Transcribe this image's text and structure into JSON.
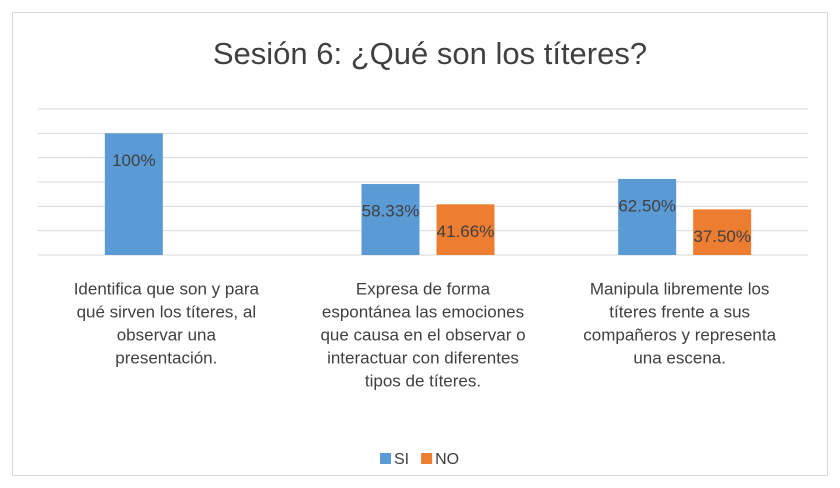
{
  "chart_data": {
    "type": "bar",
    "title": "Sesión 6: ¿Qué son los títeres?",
    "categories": [
      [
        "Identifica que son y para",
        "qué sirven los títeres, al",
        "observar una",
        "presentación."
      ],
      [
        "Expresa de forma",
        "espontánea las emociones",
        "que causa en el observar o",
        "interactuar con diferentes",
        "tipos de títeres."
      ],
      [
        "Manipula libremente  los",
        "títeres frente a sus",
        "compañeros y representa",
        "una escena."
      ]
    ],
    "series": [
      {
        "name": "SI",
        "color": "#5b9bd5",
        "values": [
          100,
          58.33,
          62.5
        ],
        "value_labels": [
          "100%",
          "58.33%",
          "62.50%"
        ]
      },
      {
        "name": "NO",
        "color": "#ed7d31",
        "values": [
          null,
          41.66,
          37.5
        ],
        "value_labels": [
          null,
          "41.66%",
          "37.50%"
        ]
      }
    ],
    "ylim": [
      0,
      120
    ],
    "yticks": [
      0,
      20,
      40,
      60,
      80,
      100,
      120
    ],
    "grid": true,
    "legend": "bottom"
  }
}
